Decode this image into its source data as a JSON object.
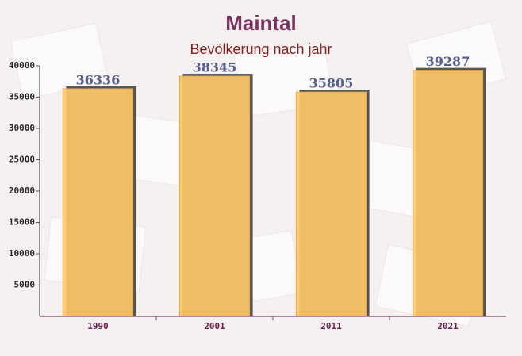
{
  "chart_data": {
    "type": "bar",
    "title": "Maintal",
    "subtitle": "Bevölkerung nach jahr",
    "categories": [
      "1990",
      "2001",
      "2011",
      "2021"
    ],
    "values": [
      36336,
      38345,
      35805,
      39287
    ],
    "color": "#ffc966",
    "ylim": [
      0,
      40000
    ],
    "yticks": [
      5000,
      10000,
      15000,
      20000,
      25000,
      30000,
      35000,
      40000
    ],
    "grid": false
  }
}
